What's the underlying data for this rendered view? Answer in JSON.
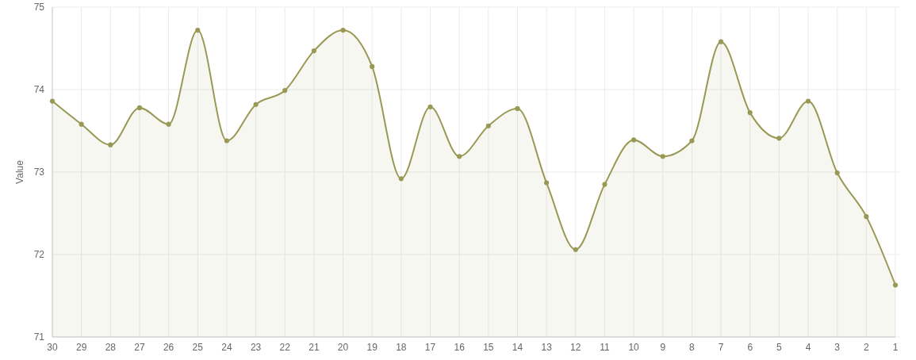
{
  "chart_data": {
    "type": "area",
    "ylabel": "Value",
    "categories": [
      "30",
      "29",
      "28",
      "27",
      "26",
      "25",
      "24",
      "23",
      "22",
      "21",
      "20",
      "19",
      "18",
      "17",
      "16",
      "15",
      "14",
      "13",
      "12",
      "11",
      "10",
      "9",
      "8",
      "7",
      "6",
      "5",
      "4",
      "3",
      "2",
      "1"
    ],
    "series": [
      {
        "color": "#999955",
        "values": [
          73.86,
          73.58,
          73.33,
          73.78,
          73.58,
          74.72,
          73.38,
          73.82,
          73.99,
          74.47,
          74.72,
          74.28,
          72.92,
          73.79,
          73.19,
          73.56,
          73.77,
          72.87,
          72.06,
          72.85,
          73.39,
          73.19,
          73.38,
          74.58,
          73.72,
          73.41,
          73.86,
          72.99,
          72.46,
          71.63
        ]
      }
    ],
    "ylim": [
      71,
      75
    ],
    "yticks": [
      71,
      72,
      73,
      74,
      75
    ],
    "grid": true,
    "marker": "circle"
  }
}
